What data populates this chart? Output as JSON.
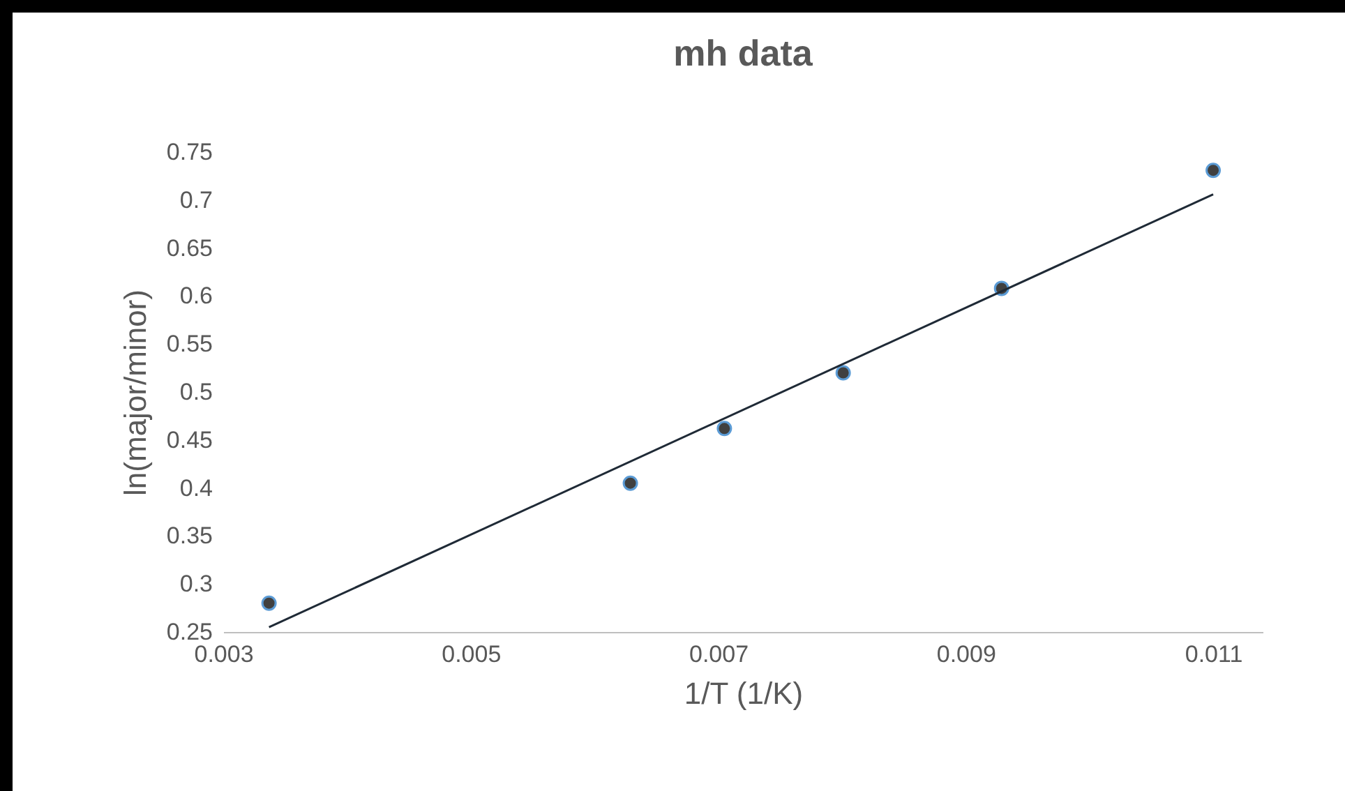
{
  "chart_data": {
    "type": "scatter",
    "title": "mh data",
    "xlabel": "1/T (1/K)",
    "ylabel": "ln(major/minor)",
    "x": [
      0.00337,
      0.00629,
      0.00705,
      0.00801,
      0.00929,
      0.011
    ],
    "series": [
      {
        "color": "#404040",
        "marker": "circle",
        "values": [
          0.28,
          0.405,
          0.462,
          0.52,
          0.608,
          0.731
        ]
      },
      {
        "type": "line",
        "color": "#1f2a36",
        "line_style": "solid",
        "x": [
          0.00337,
          0.011
        ],
        "values": [
          0.255,
          0.706
        ]
      }
    ],
    "xlim": [
      0.003,
      0.0114
    ],
    "xticks": [
      0.003,
      0.005,
      0.007,
      0.009,
      0.011
    ],
    "ylim": [
      0.25,
      0.75
    ],
    "yticks": [
      0.25,
      0.3,
      0.35,
      0.4,
      0.45,
      0.5,
      0.55,
      0.6,
      0.65,
      0.7,
      0.75
    ],
    "grid": false
  }
}
